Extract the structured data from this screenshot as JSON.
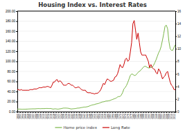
{
  "chart_data": {
    "type": "line",
    "title": "Housing Index vs. Interest Rates",
    "x": [
      1890,
      1891,
      1892,
      1893,
      1894,
      1895,
      1896,
      1897,
      1898,
      1899,
      1900,
      1901,
      1902,
      1903,
      1904,
      1905,
      1906,
      1907,
      1908,
      1909,
      1910,
      1911,
      1912,
      1913,
      1914,
      1915,
      1916,
      1917,
      1918,
      1919,
      1920,
      1921,
      1922,
      1923,
      1924,
      1925,
      1926,
      1927,
      1928,
      1929,
      1930,
      1931,
      1932,
      1933,
      1934,
      1935,
      1936,
      1937,
      1938,
      1939,
      1940,
      1941,
      1942,
      1943,
      1944,
      1945,
      1946,
      1947,
      1948,
      1949,
      1950,
      1951,
      1952,
      1953,
      1954,
      1955,
      1956,
      1957,
      1958,
      1959,
      1960,
      1961,
      1962,
      1963,
      1964,
      1965,
      1966,
      1967,
      1968,
      1969,
      1970,
      1971,
      1972,
      1973,
      1974,
      1975,
      1976,
      1977,
      1978,
      1979,
      1980,
      1981,
      1982,
      1983,
      1984,
      1985,
      1986,
      1987,
      1988,
      1989,
      1990,
      1991,
      1992,
      1993,
      1994,
      1995,
      1996,
      1997,
      1998,
      1999,
      2000,
      2001,
      2002,
      2003,
      2004,
      2005,
      2006,
      2007,
      2008,
      2009,
      2010,
      2011,
      2012,
      2013
    ],
    "series": [
      {
        "name": "Home price index",
        "color": "#7ab648",
        "values": [
          5.0,
          5.0,
          5.0,
          4.8,
          4.7,
          4.8,
          4.8,
          4.9,
          5.0,
          5.2,
          5.3,
          5.4,
          5.5,
          5.5,
          5.5,
          5.8,
          6.0,
          6.0,
          5.8,
          6.0,
          6.0,
          6.0,
          6.2,
          6.3,
          6.2,
          6.1,
          6.2,
          5.5,
          5.0,
          5.5,
          5.5,
          5.0,
          5.0,
          5.5,
          5.8,
          6.5,
          7.0,
          7.0,
          7.0,
          6.8,
          6.5,
          5.8,
          5.2,
          5.5,
          5.8,
          6.0,
          6.5,
          7.0,
          7.0,
          7.5,
          8.0,
          8.5,
          9.0,
          9.0,
          9.5,
          10.0,
          11.0,
          12.0,
          13.0,
          13.5,
          14.0,
          15.0,
          15.5,
          16.0,
          17.0,
          18.0,
          19.0,
          19.5,
          20.0,
          21.0,
          21.0,
          21.5,
          22.0,
          23.0,
          24.0,
          25.0,
          26.0,
          27.0,
          29.0,
          30.0,
          30.0,
          33.0,
          38.0,
          45.0,
          48.0,
          52.0,
          58.0,
          65.0,
          72.0,
          75.0,
          74.0,
          72.0,
          72.0,
          75.0,
          78.0,
          80.0,
          82.0,
          85.0,
          88.0,
          90.0,
          90.0,
          88.0,
          87.0,
          87.0,
          88.0,
          88.0,
          92.0,
          97.0,
          103.0,
          110.0,
          117.0,
          122.0,
          130.0,
          142.0,
          155.0,
          170.0,
          172.0,
          165.0,
          140.0,
          125.0,
          122.0,
          122.0,
          128.0,
          133.0
        ]
      },
      {
        "name": "Long Rate",
        "color": "#cc0000",
        "axis": "y2",
        "values": [
          3.5,
          3.5,
          3.4,
          3.5,
          3.4,
          3.4,
          3.4,
          3.4,
          3.4,
          3.4,
          3.5,
          3.5,
          3.5,
          3.6,
          3.6,
          3.6,
          3.7,
          3.8,
          3.8,
          3.8,
          3.9,
          3.9,
          3.9,
          4.0,
          4.0,
          3.9,
          3.8,
          4.2,
          4.7,
          4.7,
          5.0,
          5.1,
          4.7,
          4.9,
          4.8,
          4.5,
          4.2,
          4.2,
          4.2,
          4.4,
          4.5,
          4.4,
          4.2,
          4.2,
          4.0,
          3.8,
          3.8,
          3.9,
          3.9,
          3.7,
          3.5,
          3.4,
          3.4,
          3.4,
          3.1,
          3.0,
          3.0,
          3.0,
          2.9,
          2.9,
          2.8,
          2.9,
          2.9,
          3.0,
          3.2,
          3.5,
          4.0,
          4.5,
          4.3,
          4.8,
          5.2,
          5.1,
          4.9,
          4.8,
          4.9,
          5.0,
          5.5,
          5.6,
          6.0,
          6.7,
          7.5,
          7.1,
          7.0,
          7.5,
          8.3,
          8.5,
          8.0,
          8.2,
          9.5,
          11.0,
          14.0,
          14.5,
          13.0,
          11.5,
          12.5,
          11.0,
          9.5,
          9.0,
          9.0,
          9.0,
          9.0,
          8.5,
          8.0,
          7.0,
          7.5,
          7.0,
          6.8,
          6.7,
          6.2,
          6.0,
          6.8,
          6.5,
          5.9,
          5.2,
          5.5,
          5.7,
          6.2,
          6.4,
          5.5,
          4.7,
          4.2,
          4.0,
          3.5,
          3.5
        ]
      }
    ],
    "xlim": [
      1890,
      2013
    ],
    "xticks": [
      1890,
      1892,
      1894,
      1896,
      1898,
      1900,
      1902,
      1904,
      1906,
      1908,
      1910,
      1912,
      1914,
      1916,
      1918,
      1920,
      1922,
      1924,
      1926,
      1928,
      1930,
      1932,
      1934,
      1936,
      1938,
      1940,
      1942,
      1944,
      1946,
      1948,
      1950,
      1952,
      1954,
      1956,
      1958,
      1960,
      1962,
      1964,
      1966,
      1968,
      1970,
      1972,
      1974,
      1976,
      1978,
      1980,
      1982,
      1984,
      1986,
      1988,
      1990,
      1992,
      1994,
      1996,
      1998,
      2000,
      2002,
      2004,
      2006,
      2008,
      2010,
      2012
    ],
    "ylim": [
      0,
      200
    ],
    "yticks": [
      {
        "value": 0,
        "label": "0.00"
      },
      {
        "value": 20,
        "label": "20.00"
      },
      {
        "value": 40,
        "label": "40.00"
      },
      {
        "value": 60,
        "label": "60.00"
      },
      {
        "value": 80,
        "label": "80.00"
      },
      {
        "value": 100,
        "label": "100.00"
      },
      {
        "value": 120,
        "label": "120.00"
      },
      {
        "value": 140,
        "label": "140.00"
      },
      {
        "value": 160,
        "label": "160.00"
      },
      {
        "value": 180,
        "label": "180.00"
      },
      {
        "value": 200,
        "label": "200.00"
      }
    ],
    "y2lim": [
      0,
      16
    ],
    "y2ticks": [
      0,
      2,
      4,
      6,
      8,
      10,
      12,
      14,
      16
    ],
    "grid": true,
    "legend": "bottom"
  }
}
